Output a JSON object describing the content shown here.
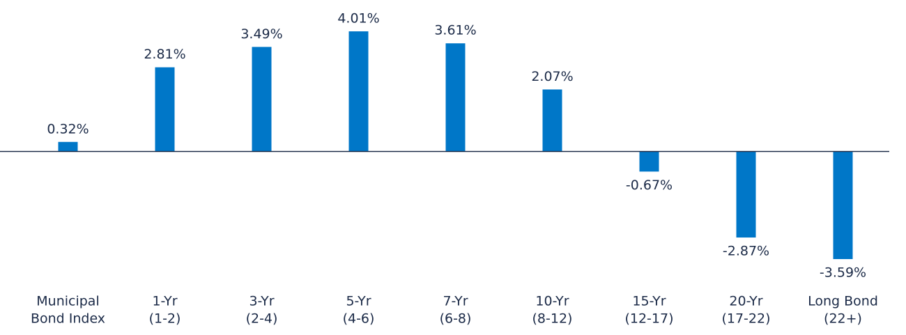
{
  "chart_data": {
    "type": "bar",
    "categories": [
      [
        "Municipal",
        "Bond Index"
      ],
      [
        "1-Yr",
        "(1-2)"
      ],
      [
        "3-Yr",
        "(2-4)"
      ],
      [
        "5-Yr",
        "(4-6)"
      ],
      [
        "7-Yr",
        "(6-8)"
      ],
      [
        "10-Yr",
        "(8-12)"
      ],
      [
        "15-Yr",
        "(12-17)"
      ],
      [
        "20-Yr",
        "(17-22)"
      ],
      [
        "Long Bond",
        "(22+)"
      ]
    ],
    "values": [
      0.32,
      2.81,
      3.49,
      4.01,
      3.61,
      2.07,
      -0.67,
      -2.87,
      -3.59
    ],
    "value_labels": [
      "0.32%",
      "2.81%",
      "3.49%",
      "4.01%",
      "3.61%",
      "2.07%",
      "-0.67%",
      "-2.87%",
      "-3.59%"
    ],
    "color": "#0077c8"
  }
}
